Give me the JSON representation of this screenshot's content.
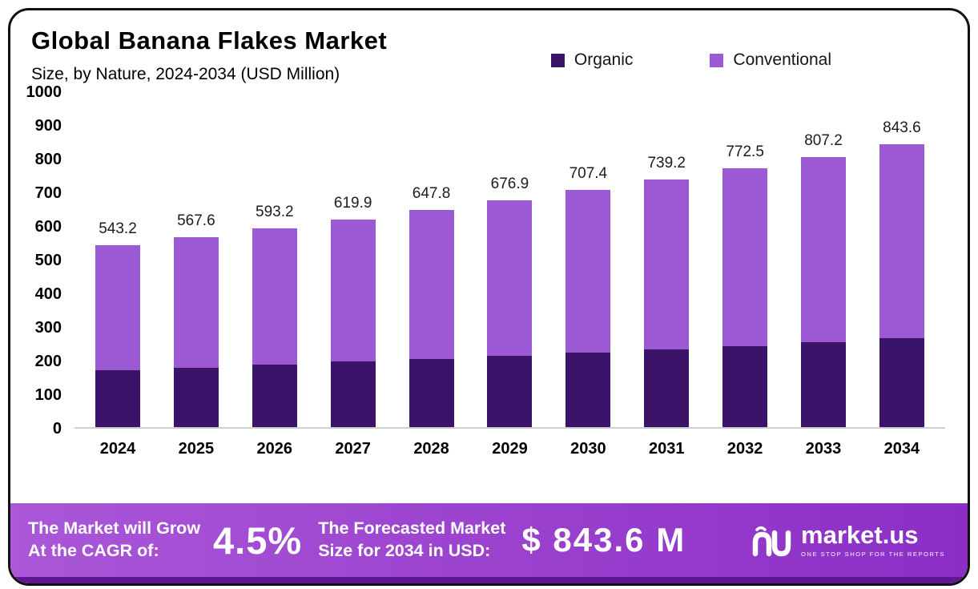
{
  "chart_data": {
    "type": "bar",
    "stacked": true,
    "title": "Global Banana Flakes Market",
    "subtitle": "Size, by Nature, 2024-2034 (USD Million)",
    "categories": [
      "2024",
      "2025",
      "2026",
      "2027",
      "2028",
      "2029",
      "2030",
      "2031",
      "2032",
      "2033",
      "2034"
    ],
    "series": [
      {
        "name": "Organic",
        "color": "#3b1368",
        "values": [
          170.0,
          178.0,
          187.0,
          195.0,
          204.0,
          213.0,
          222.0,
          232.0,
          242.0,
          253.0,
          265.0
        ]
      },
      {
        "name": "Conventional",
        "color": "#9b59d4",
        "values": [
          373.2,
          389.6,
          406.2,
          424.9,
          443.8,
          463.9,
          485.4,
          507.2,
          530.5,
          554.2,
          578.6
        ]
      }
    ],
    "totals": [
      543.2,
      567.6,
      593.2,
      619.9,
      647.8,
      676.9,
      707.4,
      739.2,
      772.5,
      807.2,
      843.6
    ],
    "ylim": [
      0,
      1000
    ],
    "yticks": [
      0,
      100,
      200,
      300,
      400,
      500,
      600,
      700,
      800,
      900,
      1000
    ],
    "legend_position": "top",
    "grid": false
  },
  "footer": {
    "cagr_label_line1": "The Market will Grow",
    "cagr_label_line2": "At the CAGR of:",
    "cagr_value": "4.5%",
    "forecast_label_line1": "The Forecasted Market",
    "forecast_label_line2": "Size for 2034 in USD:",
    "forecast_value": "$ 843.6 M",
    "brand_name": "market.us",
    "brand_tagline": "ONE STOP SHOP FOR THE REPORTS",
    "banner_color_start": "#aa57d8",
    "banner_color_end": "#8c2ec6",
    "banner_edge_color": "#5f1693"
  }
}
